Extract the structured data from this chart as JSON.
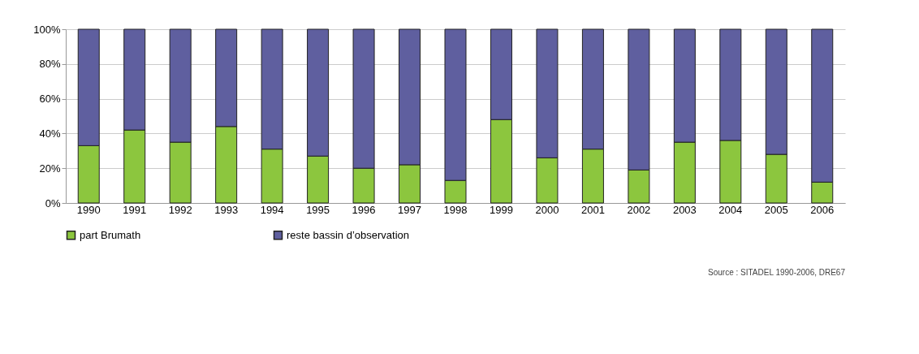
{
  "chart_data": {
    "type": "bar",
    "stacked": true,
    "categories": [
      "1990",
      "1991",
      "1992",
      "1993",
      "1994",
      "1995",
      "1996",
      "1997",
      "1998",
      "1999",
      "2000",
      "2001",
      "2002",
      "2003",
      "2004",
      "2005",
      "2006"
    ],
    "series": [
      {
        "name": "part Brumath",
        "color": "#8cc63e",
        "values": [
          33,
          42,
          35,
          44,
          31,
          27,
          20,
          22,
          13,
          48,
          26,
          31,
          19,
          35,
          36,
          28,
          12
        ]
      },
      {
        "name": "reste bassin d’observation",
        "color": "#5f5f9f",
        "values": [
          67,
          58,
          65,
          56,
          69,
          73,
          80,
          78,
          87,
          52,
          74,
          69,
          81,
          65,
          64,
          72,
          88
        ]
      }
    ],
    "ylim": [
      0,
      100
    ],
    "yticks": [
      {
        "value": 0,
        "label": "0%"
      },
      {
        "value": 20,
        "label": "20%"
      },
      {
        "value": 40,
        "label": "40%"
      },
      {
        "value": 60,
        "label": "60%"
      },
      {
        "value": 80,
        "label": "80%"
      },
      {
        "value": 100,
        "label": "100%"
      }
    ],
    "grid": "y",
    "legend": "bottom",
    "annotations": [
      "Source : SITADEL 1990-2006, DRE67"
    ]
  }
}
